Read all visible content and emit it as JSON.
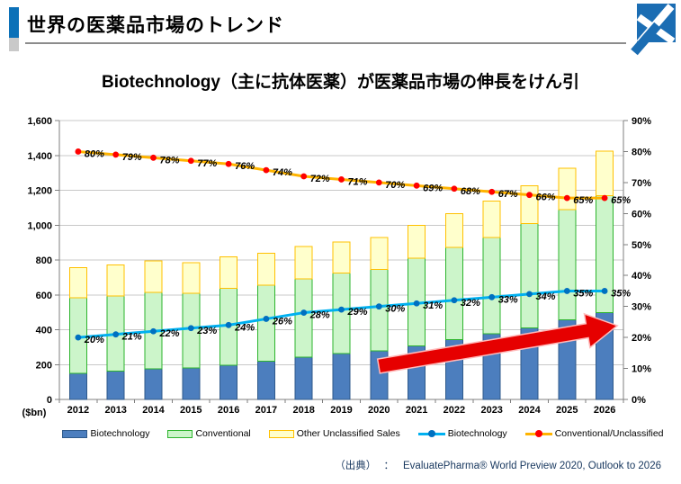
{
  "header": {
    "title": "世界の医薬品市場のトレンド"
  },
  "subtitle": "Biotechnology（主に抗体医薬）が医薬品市場の伸長をけん引",
  "source": {
    "label": "（出典）",
    "colon": "：",
    "text": "EvaluatePharma® World Preview 2020, Outlook to 2026"
  },
  "colors": {
    "accent_bar_blue": "#0C71B8",
    "accent_bar_gray": "#C9C9C9",
    "title_rule_gray": "#8C8C8C",
    "logo_blue": "#1B6DB3",
    "source_text": "#17375E",
    "axis_line": "#7F7F7F",
    "gridline": "#C8C8C8",
    "arrow_fill": "#E60000",
    "arrow_outline": "#FFB9B9",
    "text": "#000000"
  },
  "chart_data": {
    "type": "bar",
    "subtype": "stacked-bar-with-percentage-lines",
    "title": "",
    "categories": [
      "2012",
      "2013",
      "2014",
      "2015",
      "2016",
      "2017",
      "2018",
      "2019",
      "2020",
      "2021",
      "2022",
      "2023",
      "2024",
      "2025",
      "2026"
    ],
    "series": [
      {
        "name": "Biotechnology",
        "type": "bar",
        "axis": "left",
        "values": [
          150,
          163,
          176,
          181,
          197,
          219,
          243,
          264,
          280,
          308,
          342,
          376,
          411,
          457,
          499
        ],
        "fill": "#4C7EBE",
        "border": "#2F5A8B"
      },
      {
        "name": "Conventional",
        "type": "bar",
        "axis": "left",
        "values": [
          434,
          430,
          437,
          427,
          440,
          436,
          449,
          461,
          465,
          502,
          530,
          553,
          599,
          633,
          669
        ],
        "fill": "#CCF5CA",
        "border": "#2DB42D"
      },
      {
        "name": "Other Unclassified Sales",
        "type": "bar",
        "axis": "left",
        "values": [
          171,
          178,
          182,
          177,
          180,
          183,
          186,
          177,
          185,
          190,
          193,
          208,
          217,
          236,
          256
        ],
        "fill": "#FFFFCC",
        "border": "#FFC000"
      },
      {
        "name": "Biotechnology",
        "type": "line",
        "axis": "right",
        "values": [
          20,
          21,
          22,
          23,
          24,
          26,
          28,
          29,
          30,
          31,
          32,
          33,
          34,
          35,
          35
        ],
        "line_color": "#00B0F0",
        "marker_color": "#0070C0"
      },
      {
        "name": "Conventional/Unclassified",
        "type": "line",
        "axis": "right",
        "values": [
          80,
          79,
          78,
          77,
          76,
          74,
          72,
          71,
          70,
          69,
          68,
          67,
          66,
          65,
          65
        ],
        "line_color": "#FFB400",
        "marker_color": "#FF0000"
      }
    ],
    "left_axis": {
      "unit": "($bn)",
      "min": 0,
      "max": 1600,
      "step": 200,
      "tick_labels": [
        "0",
        "200",
        "400",
        "600",
        "800",
        "1,000",
        "1,200",
        "1,400",
        "1,600"
      ]
    },
    "right_axis": {
      "min": 0,
      "max": 90,
      "step": 10,
      "tick_labels": [
        "0%",
        "10%",
        "20%",
        "30%",
        "40%",
        "50%",
        "60%",
        "70%",
        "80%",
        "90%"
      ]
    },
    "grid": "horizontal",
    "legend_position": "bottom",
    "annotations": {
      "growth_arrow": {
        "color": "#E60000",
        "meaning": "biotechnology bar growth 2020→2026"
      }
    }
  }
}
